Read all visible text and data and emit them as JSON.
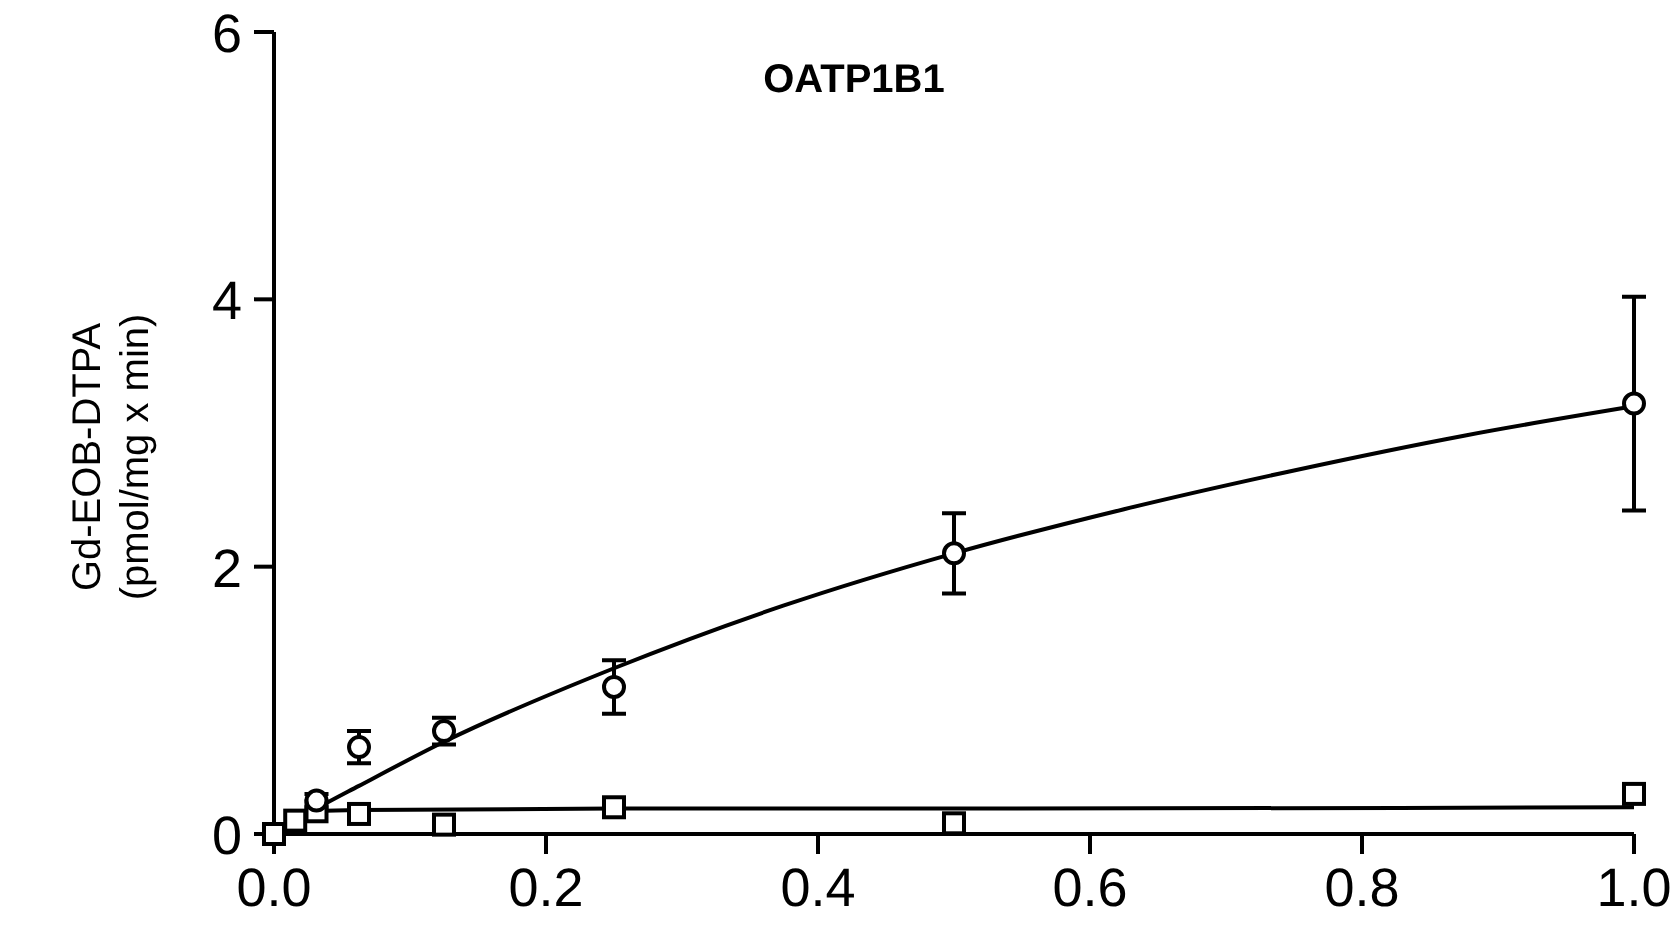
{
  "chart_data": {
    "type": "scatter",
    "title": "OATP1B1",
    "ylabel": "Gd-EOB-DTPA\n(pmol/mg x min)",
    "xlim": [
      0,
      1
    ],
    "ylim": [
      0,
      6
    ],
    "xticks": [
      {
        "value": 0,
        "label": "0.0"
      },
      0.2,
      0.4,
      0.6,
      0.8,
      {
        "value": 1,
        "label": "1.0"
      }
    ],
    "yticks": [
      0,
      2,
      4,
      6
    ],
    "grid": false,
    "series": [
      {
        "type": "line",
        "marker": "none",
        "line_style": "solid",
        "color": "#000000",
        "x": [
          0,
          0.03125,
          0.0625,
          0.125,
          0.25,
          0.375,
          0.5,
          0.625,
          0.75,
          0.875,
          1.0
        ],
        "values": [
          0,
          0.19,
          0.36,
          0.69,
          1.24,
          1.71,
          2.1,
          2.43,
          2.72,
          2.98,
          3.2
        ]
      },
      {
        "type": "line",
        "marker": "none",
        "line_style": "solid",
        "color": "#000000",
        "x": [
          0,
          0.0156,
          0.03125,
          0.0625,
          0.25,
          0.5,
          1.0
        ],
        "values": [
          0,
          0.12,
          0.17,
          0.18,
          0.19,
          0.19,
          0.2
        ]
      },
      {
        "marker": "square",
        "color": "#000000",
        "x": [
          0,
          0.0156,
          0.03125,
          0.0625,
          0.125,
          0.25,
          0.5,
          1.0
        ],
        "values": [
          0,
          0.1,
          0.17,
          0.15,
          0.07,
          0.2,
          0.08,
          0.3
        ]
      },
      {
        "marker": "circle",
        "color": "#000000",
        "x": [
          0.03125,
          0.0625,
          0.125,
          0.25,
          0.5,
          1.0
        ],
        "values": [
          0.25,
          0.65,
          0.77,
          1.1,
          2.1,
          3.22
        ],
        "errors": [
          0.05,
          0.12,
          0.1,
          0.2,
          0.3,
          0.8
        ]
      }
    ]
  }
}
